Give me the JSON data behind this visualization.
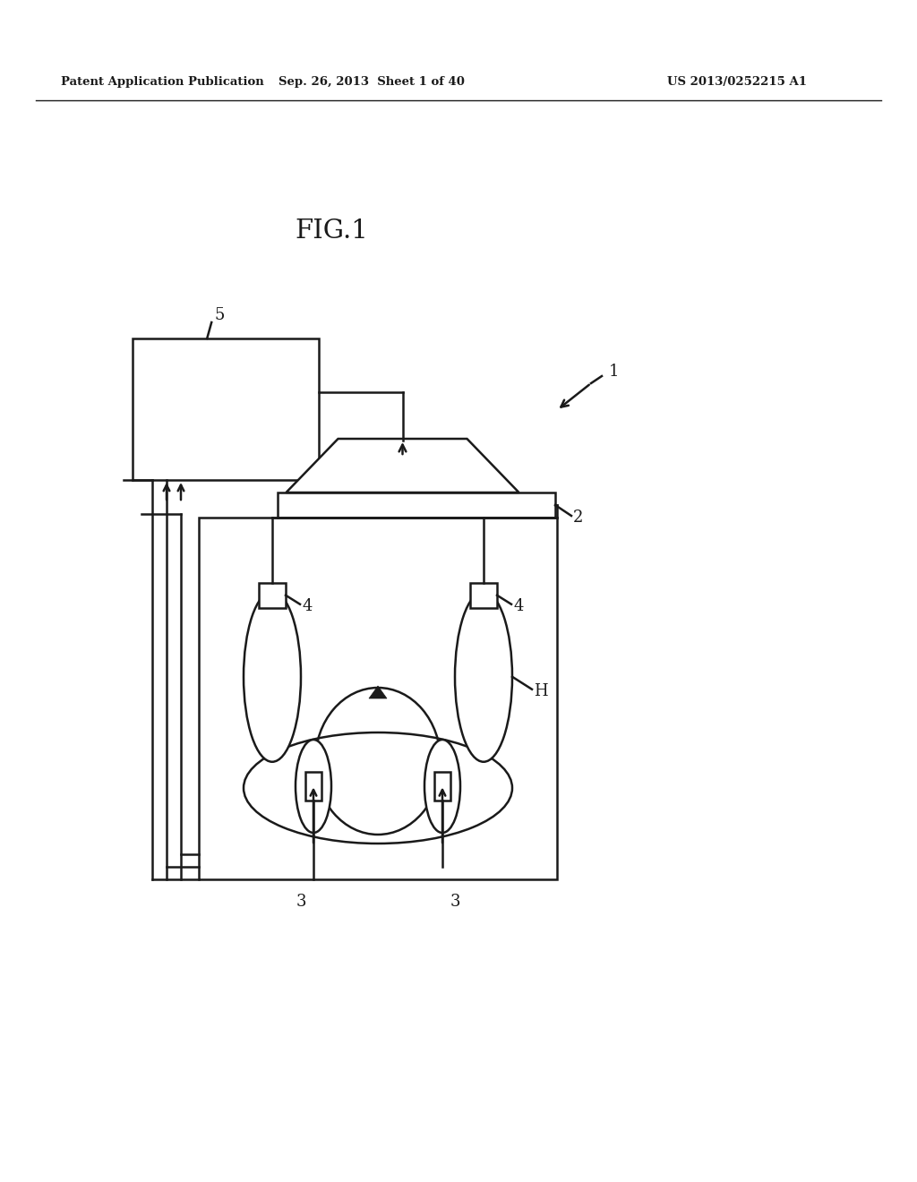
{
  "background_color": "#ffffff",
  "header_text_left": "Patent Application Publication",
  "header_text_mid": "Sep. 26, 2013  Sheet 1 of 40",
  "header_text_right": "US 2013/0252215 A1",
  "figure_label": "FIG.1",
  "label_1": "1",
  "label_2": "2",
  "label_3": "3",
  "label_4": "4",
  "label_5": "5",
  "label_H": "H"
}
